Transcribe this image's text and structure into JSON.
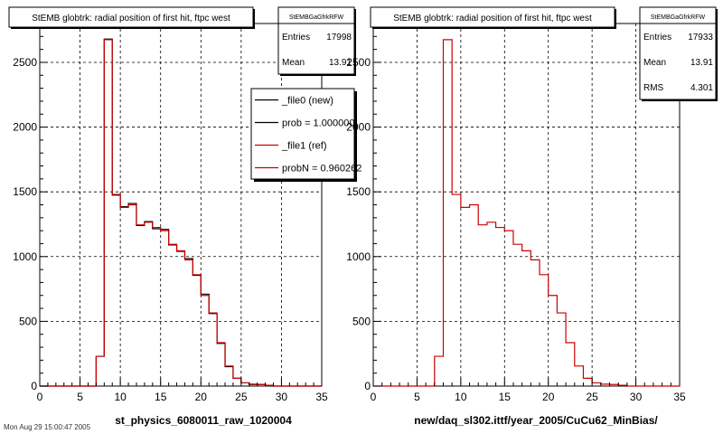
{
  "chart_data": [
    {
      "type": "histogram",
      "title": "StEMB globtrk: radial position of first hit, ftpc west",
      "xlabel": "st_physics_6080011_raw_1020004",
      "ylabel": "",
      "xlim": [
        0,
        35
      ],
      "ylim": [
        0,
        2800
      ],
      "x_ticks": [
        0,
        5,
        10,
        15,
        20,
        25,
        30,
        35
      ],
      "y_ticks": [
        0,
        500,
        1000,
        1500,
        2000,
        2500
      ],
      "grid": true,
      "bin_edges": [
        0,
        1,
        2,
        3,
        4,
        5,
        6,
        7,
        8,
        9,
        10,
        11,
        12,
        13,
        14,
        15,
        16,
        17,
        18,
        19,
        20,
        21,
        22,
        23,
        24,
        25,
        26,
        27,
        28,
        29,
        30,
        31,
        32,
        33,
        34,
        35
      ],
      "series": [
        {
          "name": "_file0 (new)",
          "color": "#000000",
          "values": [
            0,
            0,
            0,
            0,
            0,
            0,
            0,
            230,
            2680,
            1475,
            1385,
            1410,
            1240,
            1270,
            1215,
            1210,
            1090,
            1040,
            985,
            855,
            710,
            560,
            330,
            150,
            60,
            25,
            12,
            12,
            5,
            0,
            0,
            0,
            0,
            0,
            0
          ]
        },
        {
          "name": "_file1 (ref)",
          "color": "#cc0000",
          "values": [
            0,
            0,
            0,
            0,
            0,
            0,
            0,
            230,
            2675,
            1480,
            1380,
            1400,
            1245,
            1265,
            1225,
            1200,
            1095,
            1045,
            975,
            860,
            700,
            565,
            335,
            155,
            60,
            25,
            15,
            12,
            6,
            0,
            0,
            0,
            0,
            0,
            0
          ]
        }
      ],
      "stats": {
        "header": "StEMBGaGfrkRFW",
        "rows": [
          [
            "Entries",
            "17998"
          ],
          [
            "Mean",
            "13.91"
          ]
        ]
      },
      "legend": {
        "placement": "top-right",
        "entries": [
          {
            "label": "_file0 (new)",
            "color": "#000000"
          },
          {
            "label": "prob = 1.000000",
            "color": "#000000"
          },
          {
            "label": "_file1 (ref)",
            "color": "#cc0000"
          },
          {
            "label": "probN = 0.960262",
            "color": "#cc0000"
          }
        ]
      }
    },
    {
      "type": "histogram",
      "title": "StEMB globtrk: radial position of first hit, ftpc west",
      "xlabel": "new/daq_sl302.ittf/year_2005/CuCu62_MinBias/",
      "ylabel": "",
      "xlim": [
        0,
        35
      ],
      "ylim": [
        0,
        2800
      ],
      "x_ticks": [
        0,
        5,
        10,
        15,
        20,
        25,
        30,
        35
      ],
      "y_ticks": [
        0,
        500,
        1000,
        1500,
        2000,
        2500
      ],
      "grid": true,
      "bin_edges": [
        0,
        1,
        2,
        3,
        4,
        5,
        6,
        7,
        8,
        9,
        10,
        11,
        12,
        13,
        14,
        15,
        16,
        17,
        18,
        19,
        20,
        21,
        22,
        23,
        24,
        25,
        26,
        27,
        28,
        29,
        30,
        31,
        32,
        33,
        34,
        35
      ],
      "series": [
        {
          "name": "",
          "color": "#cc0000",
          "values": [
            0,
            0,
            0,
            0,
            0,
            0,
            0,
            230,
            2675,
            1480,
            1380,
            1400,
            1245,
            1265,
            1225,
            1200,
            1095,
            1045,
            975,
            860,
            700,
            565,
            335,
            155,
            60,
            25,
            15,
            12,
            6,
            0,
            0,
            0,
            0,
            0,
            0
          ]
        }
      ],
      "stats": {
        "header": "StEMBGaGfrkRFW",
        "rows": [
          [
            "Entries",
            "17933"
          ],
          [
            "Mean",
            "13.91"
          ],
          [
            "RMS",
            "4.301"
          ]
        ]
      }
    }
  ],
  "footer": {
    "timestamp": "Mon Aug 29 15:00:47 2005"
  }
}
